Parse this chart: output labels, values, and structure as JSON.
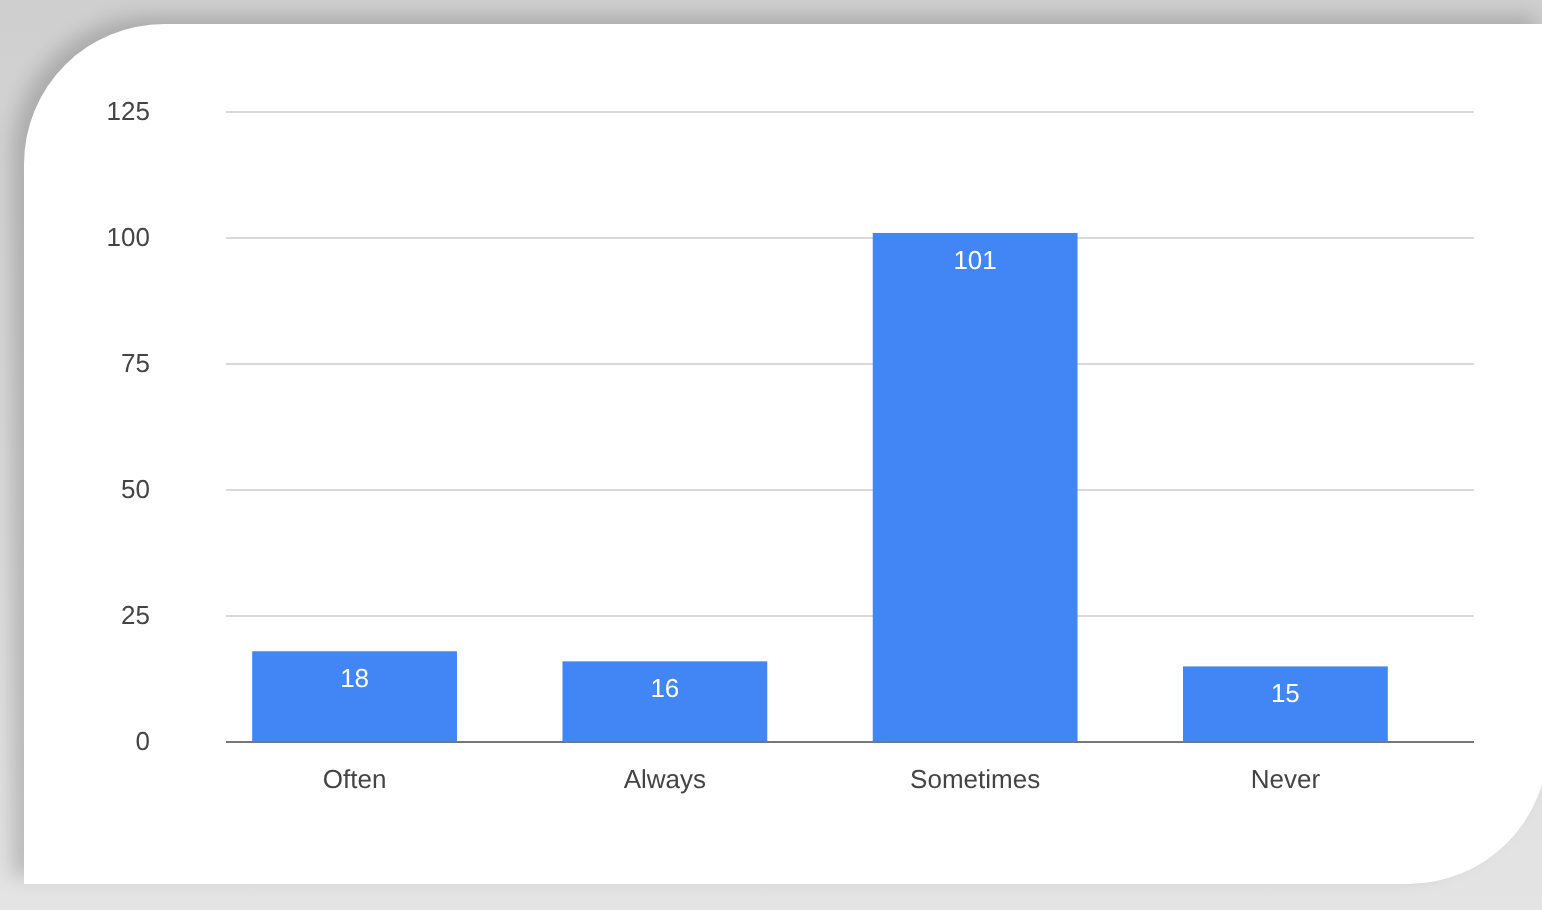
{
  "chart_data": {
    "type": "bar",
    "categories": [
      "Often",
      "Always",
      "Sometimes",
      "Never"
    ],
    "values": [
      18,
      16,
      101,
      15
    ],
    "color": "#4285f4",
    "ylim": [
      0,
      125
    ],
    "yticks": [
      0,
      25,
      50,
      75,
      100,
      125
    ],
    "grid": "y",
    "data_labels": true
  }
}
